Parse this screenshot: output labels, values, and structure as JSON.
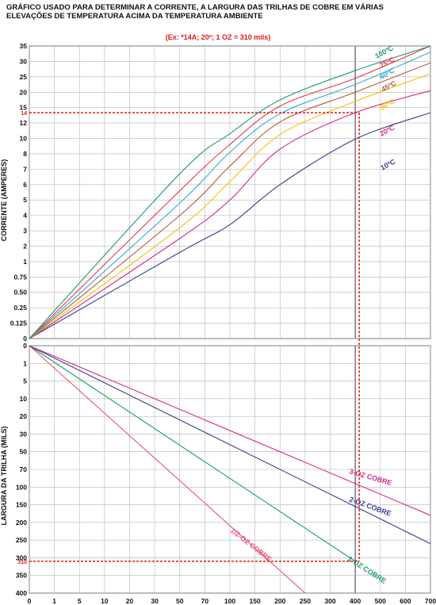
{
  "title_line1": "GRÁFICO USADO PARA DETERMINAR A  CORRENTE,  A LARGURA DAS TRILHAS DE COBRE EM  VÁRIAS",
  "title_line2": "ELEVAÇÕES DE  TEMPERATURA  ACIMA DA TEMPERATURA  AMBIENTE",
  "example": "(Ex: *14A; 20º; 1 OZ = 310 mils)",
  "chart_data": [
    {
      "type": "line",
      "ylabel": "CORRENTE (AMPERES)",
      "x_ticks": [
        "0",
        "1",
        "5",
        "10",
        "20",
        "30",
        "50",
        "70",
        "100",
        "150",
        "200",
        "250",
        "300",
        "400",
        "500",
        "600",
        "700"
      ],
      "y_ticks": [
        "0",
        "0.125",
        "0.25",
        "0.50",
        "0.75",
        "1",
        "2",
        "3",
        "4",
        "5",
        "6",
        "7",
        "8",
        "10",
        "12",
        "15",
        "20",
        "25",
        "30",
        "35"
      ],
      "ylim": [
        0,
        35
      ],
      "grid": true,
      "series": [
        {
          "name": "10ºC",
          "color": "#3a3d8c",
          "x": [
            0,
            50,
            100,
            200,
            400,
            700
          ],
          "y": [
            0,
            1.6,
            3.4,
            6.0,
            9.9,
            14.0
          ]
        },
        {
          "name": "20ºC",
          "color": "#d62a8a",
          "x": [
            0,
            50,
            100,
            200,
            400,
            700
          ],
          "y": [
            0,
            2.5,
            5.0,
            8.6,
            14.0,
            20.5
          ]
        },
        {
          "name": "30ºC",
          "color": "#f0c400",
          "x": [
            0,
            50,
            100,
            200,
            400,
            700
          ],
          "y": [
            0,
            3.2,
            6.2,
            10.5,
            17.0,
            26.0
          ]
        },
        {
          "name": "45ºC",
          "color": "#b05a3a",
          "x": [
            0,
            50,
            100,
            200,
            400,
            700
          ],
          "y": [
            0,
            4.0,
            7.2,
            12.2,
            20.0,
            29.5
          ]
        },
        {
          "name": "60ºC",
          "color": "#33a6dc",
          "x": [
            0,
            50,
            100,
            200,
            400,
            700
          ],
          "y": [
            0,
            4.8,
            8.2,
            13.8,
            22.5,
            33.0
          ]
        },
        {
          "name": "75ºC",
          "color": "#e23a4a",
          "x": [
            0,
            50,
            100,
            200,
            400,
            700
          ],
          "y": [
            0,
            5.6,
            9.2,
            15.5,
            24.5,
            35.0
          ]
        },
        {
          "name": "100ºC",
          "color": "#1f9a6a",
          "x": [
            0,
            50,
            100,
            200,
            400,
            700
          ],
          "y": [
            0,
            6.7,
            10.6,
            17.5,
            27.0,
            36.5
          ]
        }
      ],
      "annotation": {
        "x": 400,
        "y": 14,
        "label": "14"
      }
    },
    {
      "type": "line",
      "ylabel": "LARGURA DA TRILHA (MILS)",
      "x_ticks": [
        "0",
        "1",
        "5",
        "10",
        "20",
        "30",
        "50",
        "70",
        "100",
        "150",
        "200",
        "250",
        "300",
        "400",
        "500",
        "600",
        "700"
      ],
      "y_ticks": [
        "0",
        "1",
        "5",
        "10",
        "20",
        "30",
        "50",
        "70",
        "100",
        "150",
        "200",
        "250",
        "300",
        "350",
        "400"
      ],
      "ylim": [
        0,
        400
      ],
      "grid": true,
      "series": [
        {
          "name": "1/2-OZ COBRE",
          "color": "#e8557a",
          "x": [
            0,
            250
          ],
          "y": [
            0,
            400
          ]
        },
        {
          "name": "1-OZ COBRE",
          "color": "#1f9a6a",
          "x": [
            0,
            400
          ],
          "y": [
            0,
            310
          ]
        },
        {
          "name": "2-OZ COBRE",
          "color": "#3a3d8c",
          "x": [
            0,
            700
          ],
          "y": [
            0,
            260
          ]
        },
        {
          "name": "3-OZ COBRE",
          "color": "#d62a8a",
          "x": [
            0,
            700
          ],
          "y": [
            0,
            180
          ]
        }
      ],
      "annotation": {
        "x": 400,
        "y": 310,
        "label": "310"
      }
    }
  ]
}
